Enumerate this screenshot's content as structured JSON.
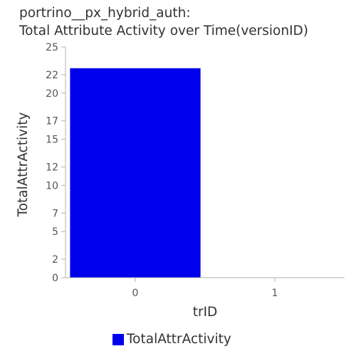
{
  "chart_data": {
    "type": "bar",
    "title": "portrino__px_hybrid_auth:",
    "subtitle": "Total Attribute Activity over Time(versionID)",
    "xlabel": "trID",
    "ylabel": "TotalAttrActivity",
    "categories": [
      "0",
      "1"
    ],
    "series": [
      {
        "name": "TotalAttrActivity",
        "values": [
          22.7,
          0
        ],
        "color": "#0000ee"
      }
    ],
    "ylim": [
      0,
      25
    ],
    "yticks": [
      "0",
      "2",
      "5",
      "7",
      "10",
      "12",
      "15",
      "17",
      "20",
      "22",
      "25"
    ],
    "grid": false,
    "legend": "bottom-center"
  }
}
